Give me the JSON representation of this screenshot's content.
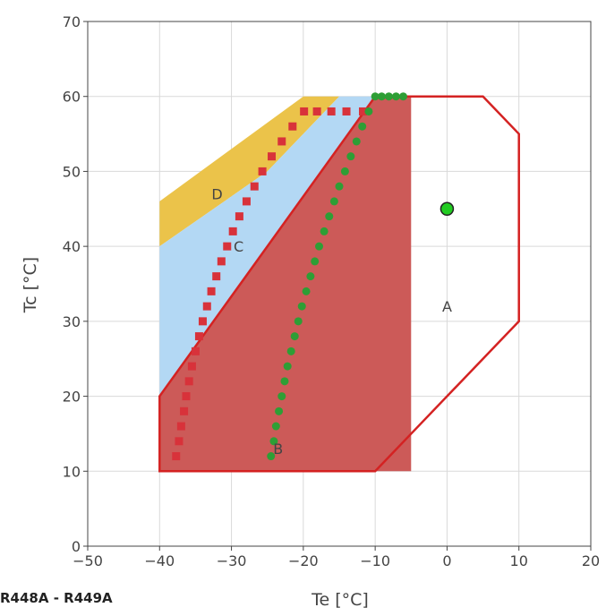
{
  "chart_data": {
    "type": "scatter",
    "xlabel": "Te [°C]",
    "ylabel": "Tc [°C]",
    "xlim": [
      -50,
      20
    ],
    "ylim": [
      0,
      70
    ],
    "xticks": [
      -50,
      -40,
      -30,
      -20,
      -10,
      0,
      10,
      20
    ],
    "yticks": [
      0,
      10,
      20,
      30,
      40,
      50,
      60,
      70
    ],
    "xtick_labels": [
      "−50",
      "−40",
      "−30",
      "−20",
      "−10",
      "0",
      "10",
      "20"
    ],
    "ytick_labels": [
      "0",
      "10",
      "20",
      "30",
      "40",
      "50",
      "60",
      "70"
    ],
    "grid": true,
    "regions": [
      {
        "label": "D",
        "label_at": [
          -32,
          47
        ],
        "color": "#ebc34a",
        "polygon": [
          [
            -40,
            40
          ],
          [
            -40,
            46
          ],
          [
            -20,
            60
          ],
          [
            -15,
            60
          ],
          [
            -25,
            50
          ]
        ]
      },
      {
        "label": "C",
        "label_at": [
          -29,
          40
        ],
        "color": "#b3d8f4",
        "polygon": [
          [
            -40,
            20
          ],
          [
            -40,
            40
          ],
          [
            -25,
            50
          ],
          [
            -15,
            60
          ],
          [
            -10,
            60
          ]
        ]
      },
      {
        "label": "B",
        "label_at": [
          -23.5,
          13
        ],
        "color": "#cc5a58",
        "polygon": [
          [
            -40,
            10
          ],
          [
            -40,
            20
          ],
          [
            -10,
            60
          ],
          [
            -5,
            60
          ],
          [
            -5,
            10
          ]
        ]
      }
    ],
    "envelope": {
      "label": "A",
      "label_at": [
        0,
        32
      ],
      "color": "#d42222",
      "points": [
        [
          -5,
          15
        ],
        [
          -10,
          10
        ],
        [
          -40,
          10
        ],
        [
          -40,
          20
        ],
        [
          -10,
          60
        ],
        [
          5,
          60
        ],
        [
          10,
          55
        ],
        [
          10,
          30
        ],
        [
          -5,
          15
        ]
      ]
    },
    "series": [
      {
        "marker": "square",
        "color": "#d8323a",
        "x": [
          -37.7,
          -37.3,
          -37.0,
          -36.6,
          -36.3,
          -35.9,
          -35.5,
          -35.0,
          -34.5,
          -34.0,
          -33.4,
          -32.8,
          -32.1,
          -31.4,
          -30.6,
          -29.8,
          -28.9,
          -27.9,
          -26.8,
          -25.7,
          -24.4,
          -23.0,
          -21.5,
          -19.9,
          -18.1,
          -16.1,
          -14.0,
          -11.7
        ],
        "y": [
          12,
          14,
          16,
          18,
          20,
          22,
          24,
          26,
          28,
          30,
          32,
          34,
          36,
          38,
          40,
          42,
          44,
          46,
          48,
          50,
          52,
          54,
          56,
          58,
          58,
          58,
          58,
          58
        ]
      },
      {
        "marker": "circle",
        "color": "#2e9e35",
        "x": [
          -24.5,
          -24.1,
          -23.8,
          -23.4,
          -23.0,
          -22.6,
          -22.2,
          -21.7,
          -21.2,
          -20.7,
          -20.2,
          -19.6,
          -19.0,
          -18.4,
          -17.8,
          -17.1,
          -16.4,
          -15.7,
          -15.0,
          -14.2,
          -13.4,
          -12.6,
          -11.8,
          -10.9,
          -10.0,
          -9.1,
          -8.1,
          -7.1,
          -6.1
        ],
        "y": [
          12,
          14,
          16,
          18,
          20,
          22,
          24,
          26,
          28,
          30,
          32,
          34,
          36,
          38,
          40,
          42,
          44,
          46,
          48,
          50,
          52,
          54,
          56,
          58,
          60,
          60,
          60,
          60,
          60
        ]
      }
    ],
    "highlight_point": {
      "x": 0,
      "y": 45,
      "color": "#22cc22"
    }
  },
  "refrigerant_label": "R448A - R449A"
}
